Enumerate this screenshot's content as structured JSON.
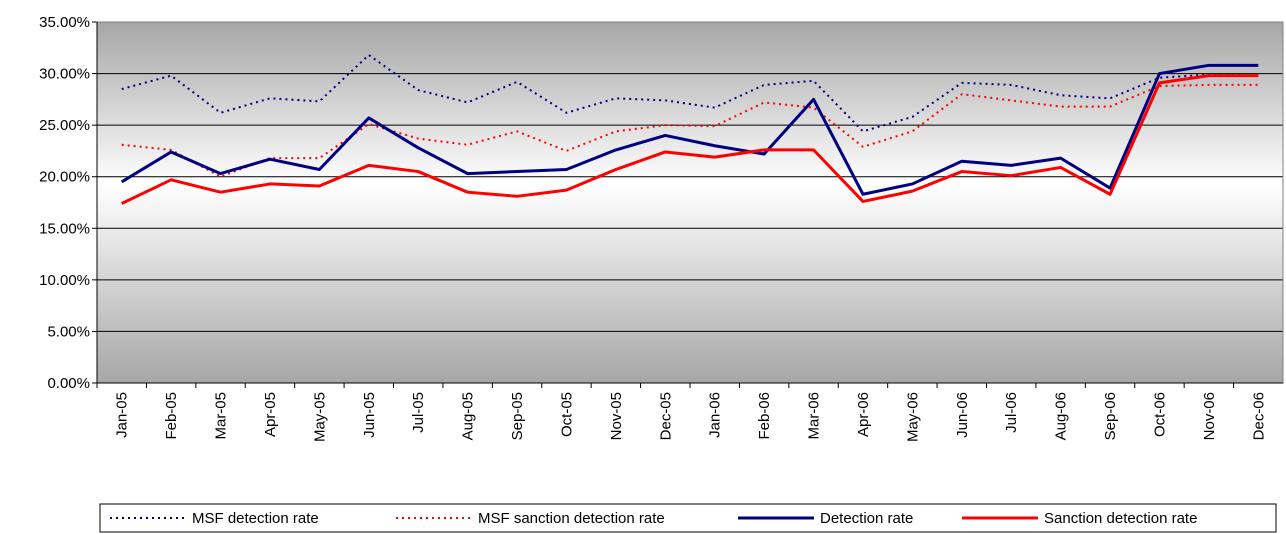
{
  "chart_data": {
    "type": "line",
    "categories": [
      "Jan-05",
      "Feb-05",
      "Mar-05",
      "Apr-05",
      "May-05",
      "Jun-05",
      "Jul-05",
      "Aug-05",
      "Sep-05",
      "Oct-05",
      "Nov-05",
      "Dec-05",
      "Jan-06",
      "Feb-06",
      "Mar-06",
      "Apr-06",
      "May-06",
      "Jun-06",
      "Jul-06",
      "Aug-06",
      "Sep-06",
      "Oct-06",
      "Nov-06",
      "Dec-06"
    ],
    "series": [
      {
        "name": "MSF detection rate",
        "color": "#000080",
        "dash": true,
        "values": [
          28.5,
          29.8,
          26.2,
          27.6,
          27.3,
          31.8,
          28.4,
          27.2,
          29.2,
          26.2,
          27.6,
          27.4,
          26.7,
          28.9,
          29.3,
          24.4,
          25.8,
          29.1,
          28.9,
          27.9,
          27.6,
          29.6,
          29.9,
          29.8
        ]
      },
      {
        "name": "MSF sanction detection rate",
        "color": "#ff0000",
        "dash": true,
        "values": [
          23.1,
          22.6,
          20.0,
          21.8,
          21.8,
          25.1,
          23.7,
          23.1,
          24.4,
          22.5,
          24.4,
          25.0,
          24.9,
          27.2,
          26.7,
          22.9,
          24.4,
          28.0,
          27.4,
          26.8,
          26.8,
          28.8,
          28.9,
          28.9
        ]
      },
      {
        "name": "Detection rate",
        "color": "#000080",
        "dash": false,
        "values": [
          19.5,
          22.4,
          20.3,
          21.7,
          20.7,
          25.7,
          22.8,
          20.3,
          20.5,
          20.7,
          22.6,
          24.0,
          23.0,
          22.2,
          27.5,
          18.3,
          19.3,
          21.5,
          21.1,
          21.8,
          18.9,
          30.0,
          30.8,
          30.8
        ]
      },
      {
        "name": "Sanction detection rate",
        "color": "#ff0000",
        "dash": false,
        "values": [
          17.4,
          19.7,
          18.5,
          19.3,
          19.1,
          21.1,
          20.5,
          18.5,
          18.1,
          18.7,
          20.7,
          22.4,
          21.9,
          22.6,
          22.6,
          17.6,
          18.6,
          20.5,
          20.1,
          20.9,
          18.3,
          29.1,
          29.8,
          29.8
        ]
      }
    ],
    "ylim": [
      0,
      35
    ],
    "yticks": [
      {
        "value": 0,
        "label": "0.00%"
      },
      {
        "value": 5,
        "label": "5.00%"
      },
      {
        "value": 10,
        "label": "10.00%"
      },
      {
        "value": 15,
        "label": "15.00%"
      },
      {
        "value": 20,
        "label": "20.00%"
      },
      {
        "value": 25,
        "label": "25.00%"
      },
      {
        "value": 30,
        "label": "30.00%"
      },
      {
        "value": 35,
        "label": "35.00%"
      }
    ],
    "grid": true,
    "legend": "bottom"
  }
}
